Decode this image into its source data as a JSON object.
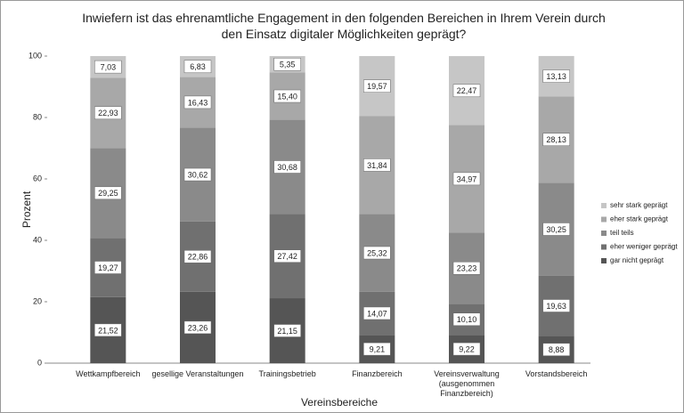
{
  "chart_data": {
    "type": "stacked_bar",
    "title": "Inwiefern ist das ehrenamtliche Engagement in den folgenden Bereichen in Ihrem Verein durch den Einsatz digitaler Möglichkeiten geprägt?",
    "x_label": "Vereinsbereiche",
    "y_label": "Prozent",
    "categories": [
      "Wettkampfbereich",
      "gesellige Veranstaltungen",
      "Trainingsbetrieb",
      "Finanzbereich",
      "Vereinsverwaltung (ausgenommen Finanzbereich)",
      "Vorstandsbereich"
    ],
    "series": [
      {
        "name": "gar nicht geprägt",
        "color": "#555555",
        "values": [
          21.52,
          23.26,
          21.15,
          9.21,
          9.22,
          8.88
        ],
        "value_labels": [
          "21,52",
          "23,26",
          "21,15",
          "9,21",
          "9,22",
          "8,88"
        ]
      },
      {
        "name": "eher weniger geprägt",
        "color": "#707070",
        "values": [
          19.27,
          22.86,
          27.42,
          14.07,
          10.1,
          19.63
        ],
        "value_labels": [
          "19,27",
          "22,86",
          "27,42",
          "14,07",
          "10,10",
          "19,63"
        ]
      },
      {
        "name": "teil teils",
        "color": "#8a8a8a",
        "values": [
          29.25,
          30.62,
          30.68,
          25.32,
          23.23,
          30.25
        ],
        "value_labels": [
          "29,25",
          "30,62",
          "30,68",
          "25,32",
          "23,23",
          "30,25"
        ]
      },
      {
        "name": "eher stark geprägt",
        "color": "#a8a8a8",
        "values": [
          22.93,
          16.43,
          15.4,
          31.84,
          34.97,
          28.13
        ],
        "value_labels": [
          "22,93",
          "16,43",
          "15,40",
          "31,84",
          "34,97",
          "28,13"
        ]
      },
      {
        "name": "sehr stark geprägt",
        "color": "#c6c6c6",
        "values": [
          7.03,
          6.83,
          5.35,
          19.57,
          22.47,
          13.13
        ],
        "value_labels": [
          "7,03",
          "6,83",
          "5,35",
          "19,57",
          "22,47",
          "13,13"
        ]
      }
    ],
    "ylim": [
      0,
      100
    ],
    "yticks": [
      0,
      20,
      40,
      60,
      80,
      100
    ],
    "grid": false,
    "legend": "right"
  }
}
